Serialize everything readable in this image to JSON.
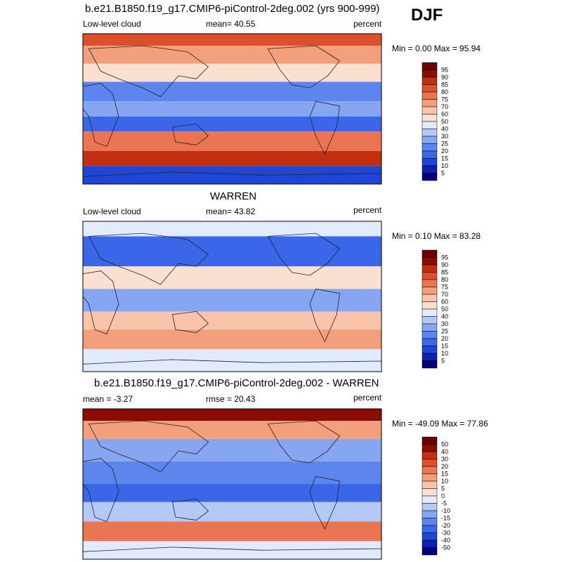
{
  "season": "DJF",
  "panels": [
    {
      "title": "b.e21.B1850.f19_g17.CMIP6-piControl-2deg.002 (yrs 900-999)",
      "left_label": "Low-level cloud",
      "center_label": "mean=  40.55",
      "right_label": "percent",
      "minmax": "Min =   0.00 Max =  95.94"
    },
    {
      "title": "WARREN",
      "left_label": "Low-level cloud",
      "center_label": "mean=  43.82",
      "right_label": "percent",
      "minmax": "Min =   0.10 Max =  83.28"
    },
    {
      "title": "b.e21.B1850.f19_g17.CMIP6-piControl-2deg.002 - WARREN",
      "left_label": "mean =  -3.27",
      "center_label": "rmse =  20.43",
      "right_label": "percent",
      "minmax": "Min = -49.09 Max =  77.86"
    }
  ],
  "chart_data": [
    {
      "type": "heatmap",
      "title": "b.e21.B1850.f19_g17.CMIP6-piControl-2deg.002 (yrs 900-999)",
      "variable": "Low-level cloud",
      "units": "percent",
      "mean": 40.55,
      "min": 0.0,
      "max": 95.94,
      "colorbar_levels": [
        5,
        10,
        15,
        20,
        25,
        30,
        40,
        50,
        60,
        70,
        75,
        80,
        85,
        90,
        95
      ],
      "colorbar_labels": [
        "95",
        "90",
        "85",
        "80",
        "75",
        "70",
        "60",
        "50",
        "40",
        "30",
        "25",
        "20",
        "15",
        "10",
        "5"
      ],
      "colors": [
        "#00007a",
        "#0a1fb4",
        "#1f45d6",
        "#3a66e8",
        "#5c85ee",
        "#86a6f2",
        "#b4c9f6",
        "#e2ebfb",
        "#fbe0d2",
        "#f8c4aa",
        "#f29f7c",
        "#ea7552",
        "#e04f2c",
        "#c2300f",
        "#8b0c00",
        "#6a0000"
      ]
    },
    {
      "type": "heatmap",
      "title": "WARREN",
      "variable": "Low-level cloud",
      "units": "percent",
      "mean": 43.82,
      "min": 0.1,
      "max": 83.28,
      "colorbar_levels": [
        5,
        10,
        15,
        20,
        25,
        30,
        40,
        50,
        60,
        70,
        75,
        80,
        85,
        90,
        95
      ],
      "colorbar_labels": [
        "95",
        "90",
        "85",
        "80",
        "75",
        "70",
        "60",
        "50",
        "40",
        "30",
        "25",
        "20",
        "15",
        "10",
        "5"
      ],
      "colors": [
        "#00007a",
        "#0a1fb4",
        "#1f45d6",
        "#3a66e8",
        "#5c85ee",
        "#86a6f2",
        "#b4c9f6",
        "#e2ebfb",
        "#fbe0d2",
        "#f8c4aa",
        "#f29f7c",
        "#ea7552",
        "#e04f2c",
        "#c2300f",
        "#8b0c00",
        "#6a0000"
      ]
    },
    {
      "type": "heatmap",
      "title": "b.e21.B1850.f19_g17.CMIP6-piControl-2deg.002 - WARREN",
      "units": "percent",
      "mean": -3.27,
      "rmse": 20.43,
      "min": -49.09,
      "max": 77.86,
      "colorbar_levels": [
        -50,
        -40,
        -30,
        -20,
        -15,
        -10,
        -5,
        0,
        5,
        10,
        15,
        20,
        30,
        40,
        50
      ],
      "colorbar_labels": [
        "50",
        "40",
        "30",
        "20",
        "15",
        "10",
        "5",
        "0",
        "-5",
        "-10",
        "-15",
        "-20",
        "-30",
        "-40",
        "-50"
      ],
      "colors": [
        "#00007a",
        "#0a1fb4",
        "#1f45d6",
        "#3a66e8",
        "#5c85ee",
        "#86a6f2",
        "#b4c9f6",
        "#e2ebfb",
        "#fbe0d2",
        "#f8c4aa",
        "#f29f7c",
        "#ea7552",
        "#e04f2c",
        "#c2300f",
        "#8b0c00",
        "#6a0000"
      ]
    }
  ]
}
